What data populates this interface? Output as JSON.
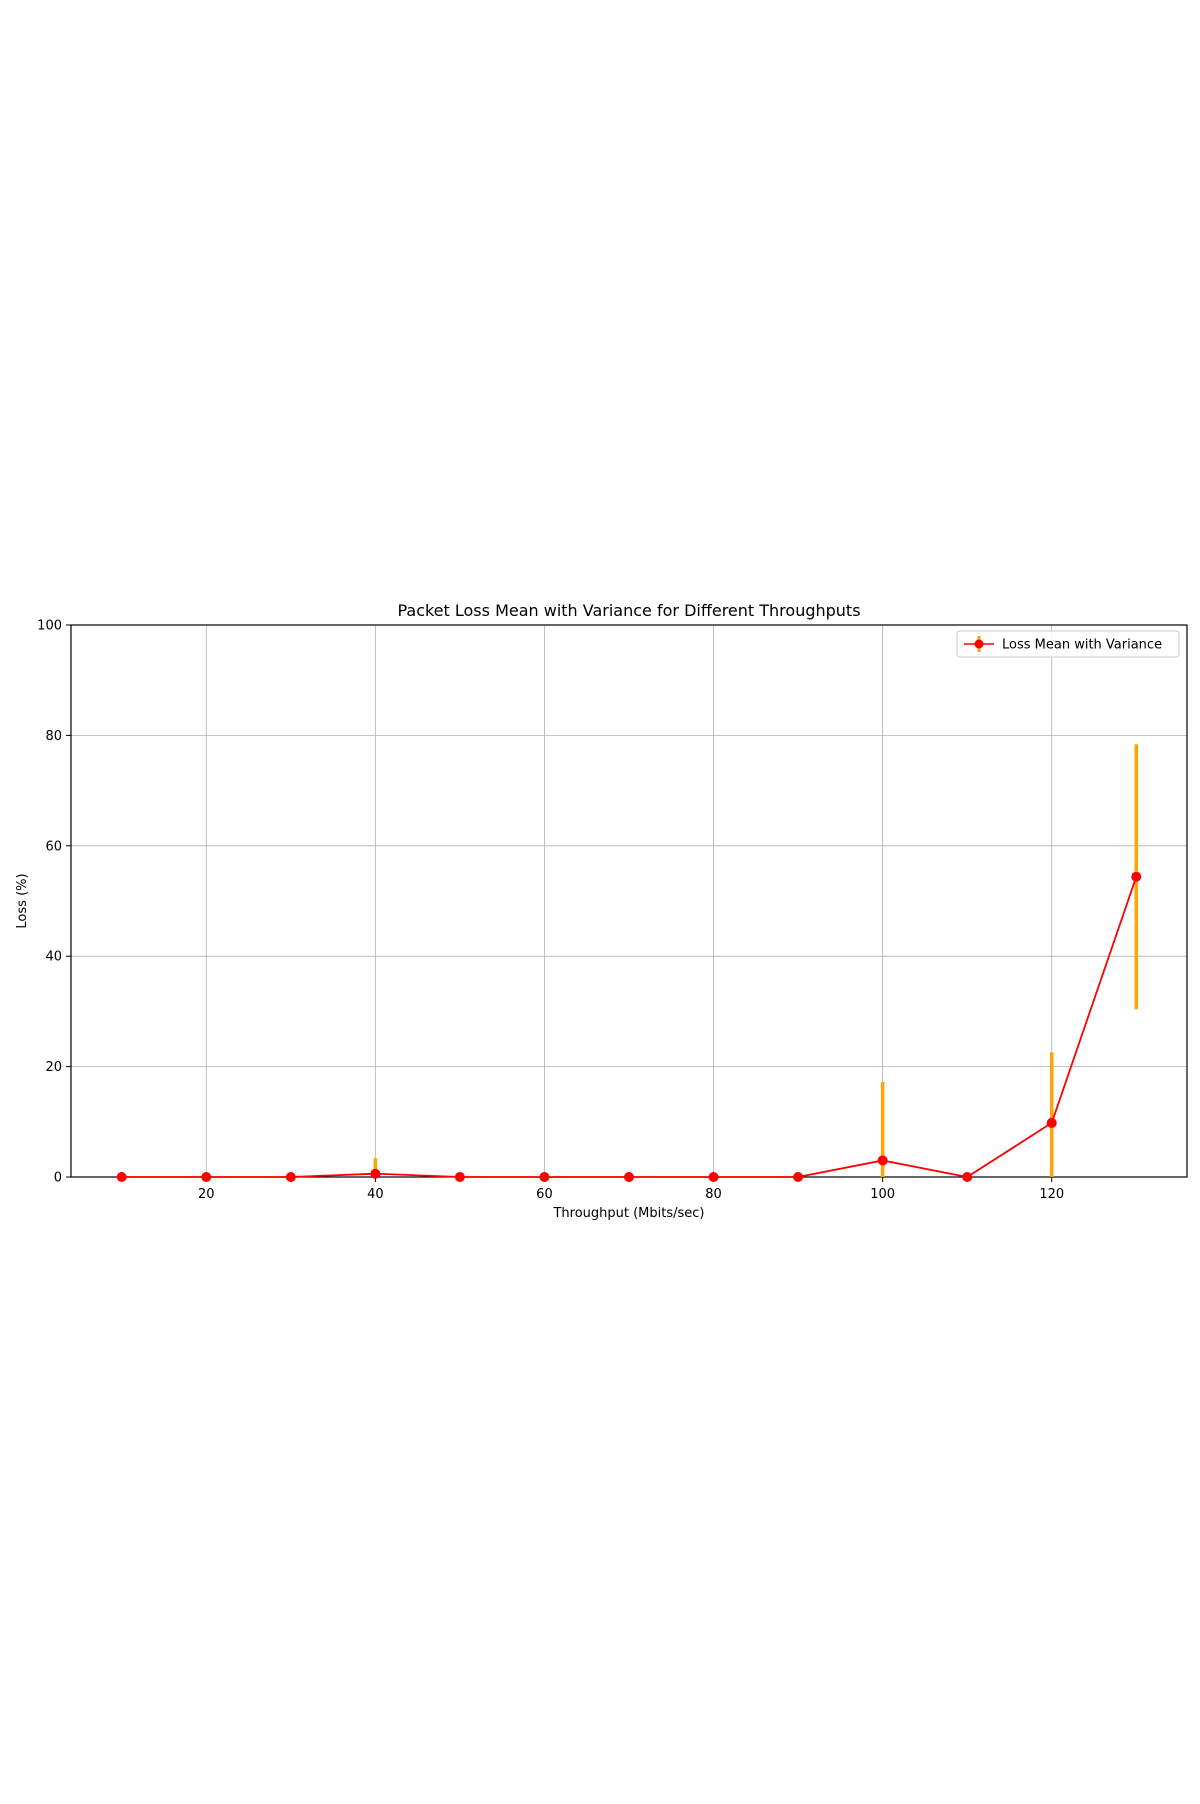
{
  "chart_data": {
    "type": "line",
    "title": "Packet Loss Mean with Variance for Different Throughputs",
    "xlabel": "Throughput (Mbits/sec)",
    "ylabel": "Loss (%)",
    "xlim": [
      4,
      136
    ],
    "ylim": [
      0,
      100
    ],
    "xticks": [
      20,
      40,
      60,
      80,
      100,
      120
    ],
    "yticks": [
      0,
      20,
      40,
      60,
      80,
      100
    ],
    "grid": true,
    "legend_position": "top-right",
    "series": [
      {
        "name": "Loss Mean with Variance",
        "color": "#ff0000",
        "error_color": "#ffa500",
        "x": [
          10,
          20,
          30,
          40,
          50,
          60,
          70,
          80,
          90,
          100,
          110,
          120,
          130
        ],
        "y": [
          0,
          0,
          0,
          0.6,
          0,
          0,
          0,
          0,
          0,
          3.0,
          0,
          9.8,
          54.4
        ],
        "error": [
          0,
          0,
          0,
          2.8,
          0,
          0,
          0,
          0,
          0,
          14.2,
          0,
          12.8,
          24.0
        ]
      }
    ]
  }
}
